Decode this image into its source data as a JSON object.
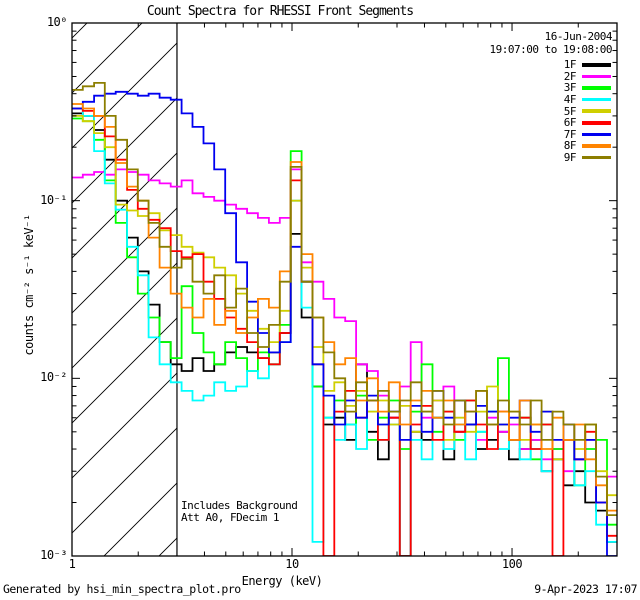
{
  "title": "Count Spectra for RHESSI Front Segments",
  "observation": {
    "date": "16-Jun-2004",
    "interval": "19:07:00 to 19:08:00"
  },
  "annotations": {
    "line1": "Includes Background",
    "line2": "Att A0, FDecim 1"
  },
  "footer": {
    "left": "Generated by hsi_min_spectra_plot.pro",
    "right": "9-Apr-2023 17:07"
  },
  "colors": {
    "background": "#ffffff",
    "frame": "#000000",
    "text": "#000000"
  },
  "chart_data": {
    "type": "line",
    "subtype": "step-histogram-spectra",
    "title": "Count Spectra for RHESSI Front Segments",
    "xlabel": "Energy (keV)",
    "ylabel": "counts cm⁻² s⁻¹ keV⁻¹",
    "xscale": "log",
    "yscale": "log",
    "xlim": [
      1,
      300
    ],
    "ylim": [
      0.001,
      1
    ],
    "grid": false,
    "legend_position": "top-right",
    "hatched_region_kev": [
      1,
      3
    ],
    "x_ticks": [
      {
        "value": 1,
        "label": "1"
      },
      {
        "value": 10,
        "label": "10"
      },
      {
        "value": 100,
        "label": "100"
      }
    ],
    "y_ticks": [
      {
        "value": 1,
        "label": "10⁰"
      },
      {
        "value": 0.1,
        "label": "10⁻¹"
      },
      {
        "value": 0.01,
        "label": "10⁻²"
      },
      {
        "value": 0.001,
        "label": "10⁻³"
      }
    ],
    "bin_edges_kev": [
      1.0,
      1.12,
      1.26,
      1.41,
      1.58,
      1.78,
      1.99,
      2.23,
      2.5,
      2.81,
      3.15,
      3.53,
      3.96,
      4.43,
      4.97,
      5.57,
      6.25,
      7.0,
      7.85,
      8.8,
      9.86,
      11.05,
      12.39,
      13.89,
      15.57,
      17.45,
      19.56,
      21.93,
      24.58,
      27.55,
      30.89,
      34.62,
      38.81,
      43.5,
      48.76,
      54.66,
      61.27,
      68.68,
      76.99,
      86.3,
      96.73,
      108.4,
      121.6,
      136.3,
      152.7,
      171.2,
      191.9,
      215.1,
      241.1,
      270.3,
      300.0
    ],
    "series": [
      {
        "name": "1F",
        "color": "#000000",
        "values": [
          0.31,
          0.3,
          0.25,
          0.17,
          0.1,
          0.062,
          0.04,
          0.026,
          0.016,
          0.012,
          0.011,
          0.013,
          0.011,
          0.012,
          0.014,
          0.015,
          0.014,
          0.013,
          0.014,
          0.018,
          0.065,
          0.022,
          0.009,
          0.0055,
          0.006,
          0.0045,
          0.012,
          0.005,
          0.0035,
          0.006,
          0.001,
          0.005,
          0.0045,
          0.006,
          0.0035,
          0.005,
          0.0055,
          0.004,
          0.0045,
          0.005,
          0.0035,
          0.004,
          0.0045,
          0.003,
          0.0035,
          0.0025,
          0.003,
          0.002,
          0.0018,
          0.0012
        ]
      },
      {
        "name": "2F",
        "color": "#FF00FF",
        "values": [
          0.135,
          0.14,
          0.145,
          0.14,
          0.15,
          0.145,
          0.14,
          0.13,
          0.125,
          0.12,
          0.13,
          0.11,
          0.105,
          0.1,
          0.095,
          0.09,
          0.085,
          0.08,
          0.075,
          0.08,
          0.15,
          0.045,
          0.035,
          0.028,
          0.022,
          0.021,
          0.012,
          0.011,
          0.008,
          0.006,
          0.009,
          0.016,
          0.006,
          0.0075,
          0.009,
          0.005,
          0.0065,
          0.0045,
          0.006,
          0.005,
          0.0055,
          0.004,
          0.0045,
          0.0035,
          0.004,
          0.003,
          0.0035,
          0.0045,
          0.002,
          0.0028
        ]
      },
      {
        "name": "3F",
        "color": "#00FF00",
        "values": [
          0.29,
          0.28,
          0.22,
          0.13,
          0.075,
          0.048,
          0.03,
          0.022,
          0.016,
          0.013,
          0.033,
          0.018,
          0.014,
          0.012,
          0.016,
          0.013,
          0.011,
          0.014,
          0.012,
          0.02,
          0.19,
          0.035,
          0.009,
          0.006,
          0.0075,
          0.0055,
          0.008,
          0.0045,
          0.006,
          0.0075,
          0.004,
          0.0065,
          0.012,
          0.005,
          0.0065,
          0.0045,
          0.0075,
          0.005,
          0.0065,
          0.013,
          0.0045,
          0.006,
          0.0035,
          0.0055,
          0.004,
          0.0045,
          0.0025,
          0.004,
          0.0045,
          0.0015
        ]
      },
      {
        "name": "4F",
        "color": "#00FFFF",
        "values": [
          0.33,
          0.3,
          0.19,
          0.125,
          0.089,
          0.055,
          0.038,
          0.017,
          0.012,
          0.0095,
          0.0085,
          0.0075,
          0.008,
          0.0095,
          0.0085,
          0.009,
          0.011,
          0.01,
          0.012,
          0.016,
          0.1,
          0.025,
          0.0012,
          0.006,
          0.0045,
          0.0055,
          0.004,
          0.0065,
          0.0045,
          0.0055,
          0.001,
          0.0045,
          0.0035,
          0.006,
          0.004,
          0.0055,
          0.0035,
          0.005,
          0.0065,
          0.004,
          0.0045,
          0.0035,
          0.004,
          0.003,
          0.0035,
          0.0045,
          0.0025,
          0.003,
          0.0015,
          0.0012
        ]
      },
      {
        "name": "5F",
        "color": "#CFCF00",
        "values": [
          0.3,
          0.28,
          0.24,
          0.2,
          0.095,
          0.088,
          0.082,
          0.085,
          0.068,
          0.064,
          0.055,
          0.051,
          0.048,
          0.042,
          0.038,
          0.03,
          0.024,
          0.019,
          0.016,
          0.024,
          0.1,
          0.042,
          0.015,
          0.0085,
          0.0095,
          0.007,
          0.0085,
          0.0065,
          0.0075,
          0.0055,
          0.007,
          0.005,
          0.0065,
          0.0075,
          0.0045,
          0.006,
          0.005,
          0.0065,
          0.009,
          0.0055,
          0.0065,
          0.0045,
          0.0055,
          0.0065,
          0.0035,
          0.0045,
          0.004,
          0.0055,
          0.003,
          0.0022
        ]
      },
      {
        "name": "6F",
        "color": "#FF0000",
        "values": [
          0.33,
          0.32,
          0.3,
          0.23,
          0.17,
          0.115,
          0.09,
          0.078,
          0.07,
          0.052,
          0.048,
          0.05,
          0.035,
          0.028,
          0.022,
          0.019,
          0.016,
          0.013,
          0.012,
          0.018,
          0.13,
          0.035,
          0.012,
          0.001,
          0.0065,
          0.0085,
          0.006,
          0.0075,
          0.0045,
          0.006,
          0.001,
          0.0055,
          0.007,
          0.0045,
          0.0065,
          0.005,
          0.0075,
          0.0055,
          0.004,
          0.0065,
          0.0045,
          0.006,
          0.004,
          0.0055,
          0.001,
          0.0045,
          0.0035,
          0.005,
          0.002,
          0.0013
        ]
      },
      {
        "name": "7F",
        "color": "#0000F0",
        "values": [
          0.33,
          0.36,
          0.39,
          0.4,
          0.41,
          0.4,
          0.39,
          0.4,
          0.38,
          0.37,
          0.31,
          0.26,
          0.21,
          0.15,
          0.085,
          0.045,
          0.027,
          0.018,
          0.014,
          0.016,
          0.055,
          0.035,
          0.012,
          0.008,
          0.0055,
          0.0075,
          0.006,
          0.008,
          0.0055,
          0.0065,
          0.0045,
          0.007,
          0.005,
          0.0085,
          0.006,
          0.0075,
          0.0055,
          0.007,
          0.0065,
          0.0055,
          0.006,
          0.0075,
          0.005,
          0.0065,
          0.0045,
          0.0055,
          0.0035,
          0.0045,
          0.002,
          0.001
        ]
      },
      {
        "name": "8F",
        "color": "#FF8400",
        "values": [
          0.35,
          0.33,
          0.3,
          0.26,
          0.163,
          0.12,
          0.1,
          0.062,
          0.042,
          0.03,
          0.025,
          0.022,
          0.028,
          0.02,
          0.024,
          0.018,
          0.022,
          0.028,
          0.025,
          0.04,
          0.165,
          0.05,
          0.022,
          0.016,
          0.012,
          0.013,
          0.0075,
          0.01,
          0.0065,
          0.0095,
          0.0055,
          0.0075,
          0.0085,
          0.006,
          0.0075,
          0.0055,
          0.0065,
          0.0085,
          0.0055,
          0.0065,
          0.0045,
          0.0075,
          0.0055,
          0.004,
          0.006,
          0.0045,
          0.0055,
          0.0035,
          0.0025,
          0.0018
        ]
      },
      {
        "name": "9F",
        "color": "#8C7E00",
        "values": [
          0.42,
          0.44,
          0.46,
          0.3,
          0.22,
          0.15,
          0.1,
          0.075,
          0.055,
          0.042,
          0.047,
          0.035,
          0.03,
          0.038,
          0.025,
          0.032,
          0.018,
          0.015,
          0.02,
          0.035,
          0.155,
          0.035,
          0.022,
          0.014,
          0.01,
          0.0065,
          0.0095,
          0.0075,
          0.0085,
          0.0065,
          0.0075,
          0.0095,
          0.0065,
          0.0085,
          0.0055,
          0.0075,
          0.0065,
          0.0085,
          0.0055,
          0.0075,
          0.0065,
          0.0055,
          0.0075,
          0.0045,
          0.0065,
          0.0055,
          0.0045,
          0.0055,
          0.0028,
          0.0017
        ]
      }
    ]
  }
}
